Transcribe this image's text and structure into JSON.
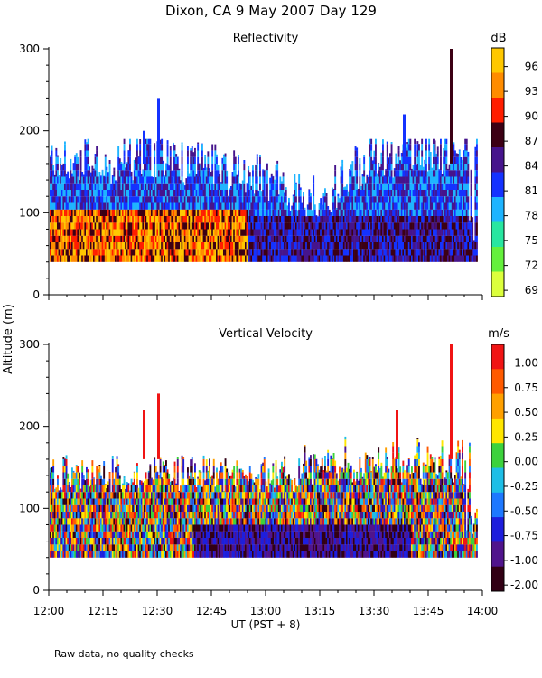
{
  "title": "Dixon, CA  9 May 2007  Day 129",
  "footnote": "Raw data, no quality checks",
  "ylabel": "Altitude (m)",
  "xlabel": "UT  (PST + 8)",
  "chart_data": [
    {
      "type": "heatmap",
      "title": "Reflectivity",
      "unit_label": "dB",
      "x_ticks": [
        "12:00",
        "12:15",
        "12:30",
        "12:45",
        "13:00",
        "13:15",
        "13:30",
        "13:45",
        "14:00"
      ],
      "xlim": [
        "12:00",
        "14:00"
      ],
      "y_ticks": [
        0,
        100,
        200,
        300
      ],
      "ylim": [
        0,
        300
      ],
      "colorbar": {
        "ticks": [
          96,
          93,
          90,
          87,
          84,
          81,
          78,
          75,
          72,
          69
        ],
        "colors": [
          "#ffc800",
          "#ff8c00",
          "#ff1e00",
          "#3c0014",
          "#46148c",
          "#1432ff",
          "#1eb4ff",
          "#28e6a0",
          "#64f03c",
          "#dcff3c"
        ]
      },
      "profile": {
        "base_altitude": 40,
        "typical_top": [
          {
            "time": "12:00",
            "top": 160
          },
          {
            "time": "12:30",
            "top": 170
          },
          {
            "time": "13:00",
            "top": 140
          },
          {
            "time": "13:15",
            "top": 120
          },
          {
            "time": "13:30",
            "top": 170
          },
          {
            "time": "13:55",
            "top": 180
          }
        ],
        "max_echo": [
          {
            "time": "12:26",
            "altitude": 200
          },
          {
            "time": "12:30",
            "altitude": 240
          },
          {
            "time": "13:38",
            "altitude": 220
          },
          {
            "time": "13:51",
            "altitude": 300
          }
        ],
        "strong_layer": {
          "from": "12:00",
          "to": "12:55",
          "altitude_range": [
            40,
            100
          ],
          "value_range": [
            87,
            96
          ]
        }
      }
    },
    {
      "type": "heatmap",
      "title": "Vertical Velocity",
      "unit_label": "m/s",
      "x_ticks": [
        "12:00",
        "12:15",
        "12:30",
        "12:45",
        "13:00",
        "13:15",
        "13:30",
        "13:45",
        "14:00"
      ],
      "xlim": [
        "12:00",
        "14:00"
      ],
      "y_ticks": [
        0,
        100,
        200,
        300
      ],
      "ylim": [
        0,
        300
      ],
      "colorbar": {
        "ticks": [
          "1.00",
          "0.75",
          "0.50",
          "0.25",
          "0.00",
          "-0.25",
          "-0.50",
          "-0.75",
          "-1.00",
          "-2.00"
        ],
        "colors": [
          "#f01414",
          "#ff5a00",
          "#ffa000",
          "#ffe600",
          "#3cd23c",
          "#1ebee6",
          "#1e78ff",
          "#1e1edc",
          "#50148c",
          "#320014"
        ]
      },
      "profile": {
        "base_altitude": 40,
        "max_echo": [
          {
            "time": "12:26",
            "altitude": 220
          },
          {
            "time": "12:30",
            "altitude": 240
          },
          {
            "time": "13:36",
            "altitude": 220
          },
          {
            "time": "13:51",
            "altitude": 300
          }
        ]
      }
    }
  ]
}
